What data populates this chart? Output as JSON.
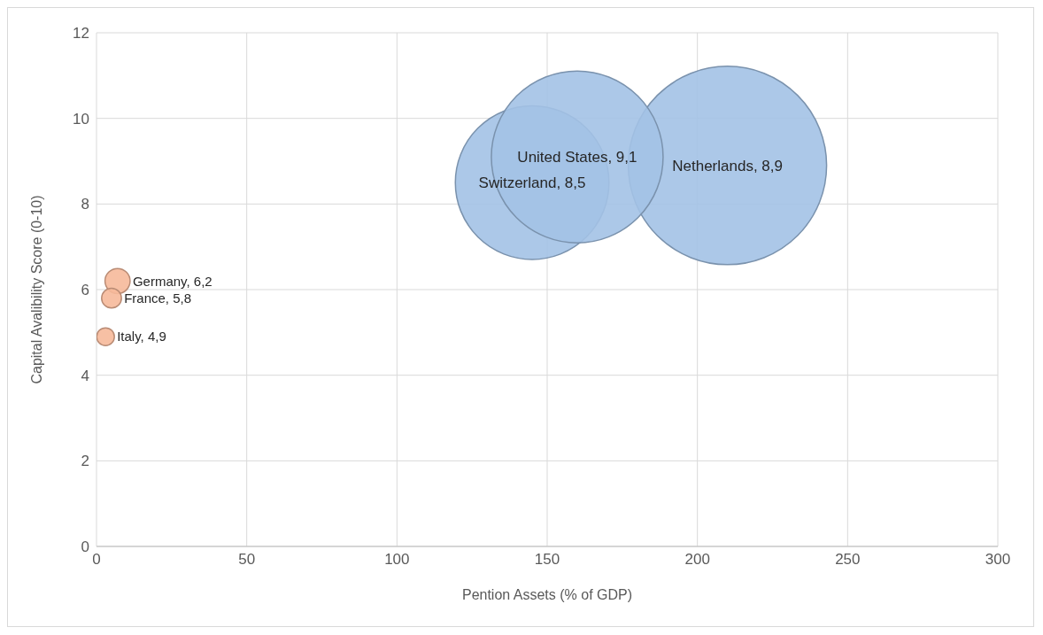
{
  "chart_data": {
    "type": "bubble",
    "xlabel": "Pention Assets (% of GDP)",
    "ylabel": "Capital Avalibility Score (0-10)",
    "xlim": [
      0,
      300
    ],
    "xticks": [
      0,
      50,
      100,
      150,
      200,
      250,
      300
    ],
    "ylim": [
      0,
      12
    ],
    "yticks": [
      0,
      2,
      4,
      6,
      8,
      10,
      12
    ],
    "grid": true,
    "legend": false,
    "series": [
      {
        "color": "#a3c2e6",
        "x": [
          145,
          210,
          160
        ],
        "values": [
          8.5,
          8.9,
          9.1
        ],
        "sizes": [
          0.6,
          1,
          0.75
        ],
        "value_labels": [
          "Switzerland, 8,5",
          "Netherlands, 8,9",
          "United States, 9,1"
        ]
      },
      {
        "color": "#f6b99a",
        "x": [
          7,
          5,
          3
        ],
        "values": [
          6.2,
          5.8,
          4.9
        ],
        "sizes": [
          0.016,
          0.01,
          0.008
        ],
        "value_labels": [
          "Germany, 6,2",
          "France, 5,8",
          "Italy, 4,9"
        ]
      }
    ]
  }
}
